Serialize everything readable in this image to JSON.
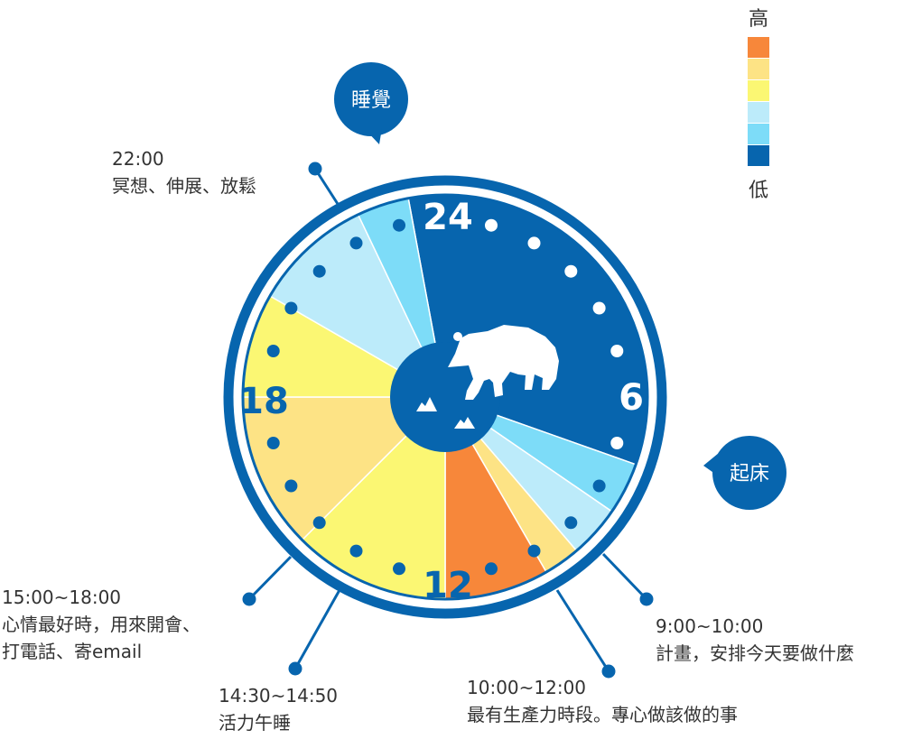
{
  "colors": {
    "high": "#F7873A",
    "mid_high": "#FDE385",
    "mid": "#FBF773",
    "mid_low": "#BCEBFA",
    "low_light": "#7DDCF8",
    "low": "#0765AE",
    "accent": "#0765AE"
  },
  "legend": {
    "high_label": "高",
    "low_label": "低",
    "swatches": [
      "#F7873A",
      "#FDE385",
      "#FBF773",
      "#BCEBFA",
      "#7DDCF8",
      "#0765AE"
    ]
  },
  "clock": {
    "hour_labels": {
      "top": "24",
      "right": "6",
      "bottom": "12",
      "left": "18"
    },
    "center_icon": "bear-icon",
    "sectors": [
      {
        "from": 23.3,
        "to": 7.3,
        "level": "low"
      },
      {
        "from": 7.3,
        "to": 8.3,
        "level": "low_light"
      },
      {
        "from": 8.3,
        "to": 9.3,
        "level": "mid_low"
      },
      {
        "from": 9.3,
        "to": 10.0,
        "level": "mid_high"
      },
      {
        "from": 10.0,
        "to": 12.0,
        "level": "high"
      },
      {
        "from": 12.0,
        "to": 15.0,
        "level": "mid"
      },
      {
        "from": 15.0,
        "to": 18.0,
        "level": "mid_high"
      },
      {
        "from": 18.0,
        "to": 20.0,
        "level": "mid"
      },
      {
        "from": 20.0,
        "to": 22.3,
        "level": "mid_low"
      },
      {
        "from": 22.3,
        "to": 23.3,
        "level": "low_light"
      }
    ]
  },
  "bubbles": {
    "sleep": "睡覺",
    "wake": "起床"
  },
  "annotations": {
    "a2200": {
      "time": "22:00",
      "desc": "冥想、伸展、放鬆"
    },
    "a0900": {
      "time": "9:00~10:00",
      "desc": "計畫，安排今天要做什麼"
    },
    "a1000": {
      "time": "10:00~12:00",
      "desc": "最有生產力時段。專心做該做的事"
    },
    "a1430": {
      "time": "14:30~14:50",
      "desc": "活力午睡"
    },
    "a1500": {
      "time": "15:00~18:00",
      "desc1": "心情最好時，用來開會、",
      "desc2": "打電話、寄email"
    }
  }
}
